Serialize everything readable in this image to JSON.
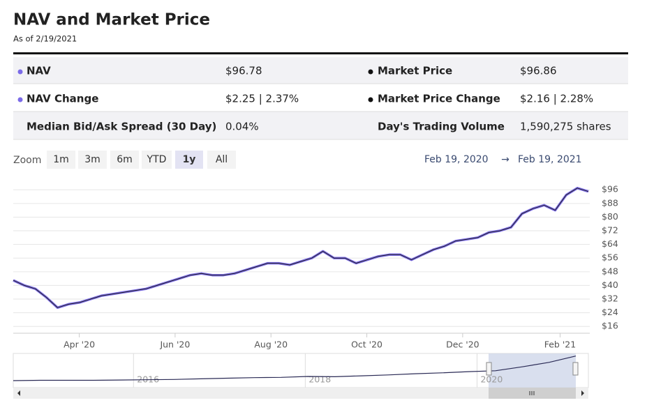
{
  "header": {
    "title": "NAV and Market Price",
    "as_of": "As of 2/19/2021"
  },
  "stats": [
    [
      {
        "label": "NAV",
        "value": "$96.78"
      },
      {
        "label": "Market Price",
        "value": "$96.86"
      }
    ],
    [
      {
        "label": "NAV Change",
        "value": "$2.25 | 2.37%"
      },
      {
        "label": "Market Price Change",
        "value": "$2.16 | 2.28%"
      }
    ],
    [
      {
        "label": "Median Bid/Ask Spread (30 Day)",
        "value": "0.04%"
      },
      {
        "label": "Day's Trading Volume",
        "value": "1,590,275 shares"
      }
    ]
  ],
  "zoom": {
    "label": "Zoom",
    "buttons": [
      "1m",
      "3m",
      "6m",
      "YTD",
      "1y",
      "All"
    ],
    "selected": "1y"
  },
  "date_range_separator": "→",
  "chart_data": {
    "type": "line",
    "xlim": [
      "Feb 19, 2020",
      "Feb 19, 2021"
    ],
    "xticks": [
      {
        "value": "2020-04",
        "label": "Apr '20"
      },
      {
        "value": "2020-06",
        "label": "Jun '20"
      },
      {
        "value": "2020-08",
        "label": "Aug '20"
      },
      {
        "value": "2020-10",
        "label": "Oct '20"
      },
      {
        "value": "2020-12",
        "label": "Dec '20"
      },
      {
        "value": "2021-02",
        "label": "Feb '21"
      }
    ],
    "ylim": [
      12,
      101
    ],
    "yticks": [
      {
        "value": 16,
        "label": "$16"
      },
      {
        "value": 24,
        "label": "$24"
      },
      {
        "value": 32,
        "label": "$32"
      },
      {
        "value": 40,
        "label": "$40"
      },
      {
        "value": 48,
        "label": "$48"
      },
      {
        "value": 56,
        "label": "$56"
      },
      {
        "value": 64,
        "label": "$64"
      },
      {
        "value": 72,
        "label": "$72"
      },
      {
        "value": 80,
        "label": "$80"
      },
      {
        "value": 88,
        "label": "$88"
      },
      {
        "value": 96,
        "label": "$96"
      }
    ],
    "grid": true,
    "series": [
      {
        "name": "NAV",
        "color": "#7b6be8",
        "values": [
          43,
          40,
          38,
          33,
          27,
          29,
          30,
          32,
          34,
          35,
          36,
          37,
          38,
          40,
          42,
          44,
          46,
          47,
          46,
          46,
          47,
          49,
          51,
          53,
          53,
          52,
          54,
          56,
          60,
          56,
          56,
          53,
          55,
          57,
          58,
          58,
          55,
          58,
          61,
          63,
          66,
          67,
          68,
          71,
          72,
          74,
          82,
          85,
          87,
          84,
          93,
          97,
          95
        ]
      },
      {
        "name": "Market Price",
        "color": "#222222",
        "values": [
          43,
          40,
          38,
          33,
          27,
          29,
          30,
          32,
          34,
          35,
          36,
          37,
          38,
          40,
          42,
          44,
          46,
          47,
          46,
          46,
          47,
          49,
          51,
          53,
          53,
          52,
          54,
          56,
          60,
          56,
          56,
          53,
          55,
          57,
          58,
          58,
          55,
          58,
          61,
          63,
          66,
          67,
          68,
          71,
          72,
          74,
          82,
          85,
          87,
          84,
          93,
          97,
          95
        ]
      }
    ],
    "navigator": {
      "xlim": [
        2014.6,
        2021.15
      ],
      "xticks": [
        2016,
        2018,
        2020
      ],
      "ylim": [
        0,
        100
      ],
      "values": [
        14,
        15,
        15,
        15,
        16,
        17,
        18,
        20,
        22,
        24,
        25,
        28,
        27,
        30,
        33,
        37,
        40,
        44,
        47,
        60,
        75,
        96
      ]
    }
  }
}
